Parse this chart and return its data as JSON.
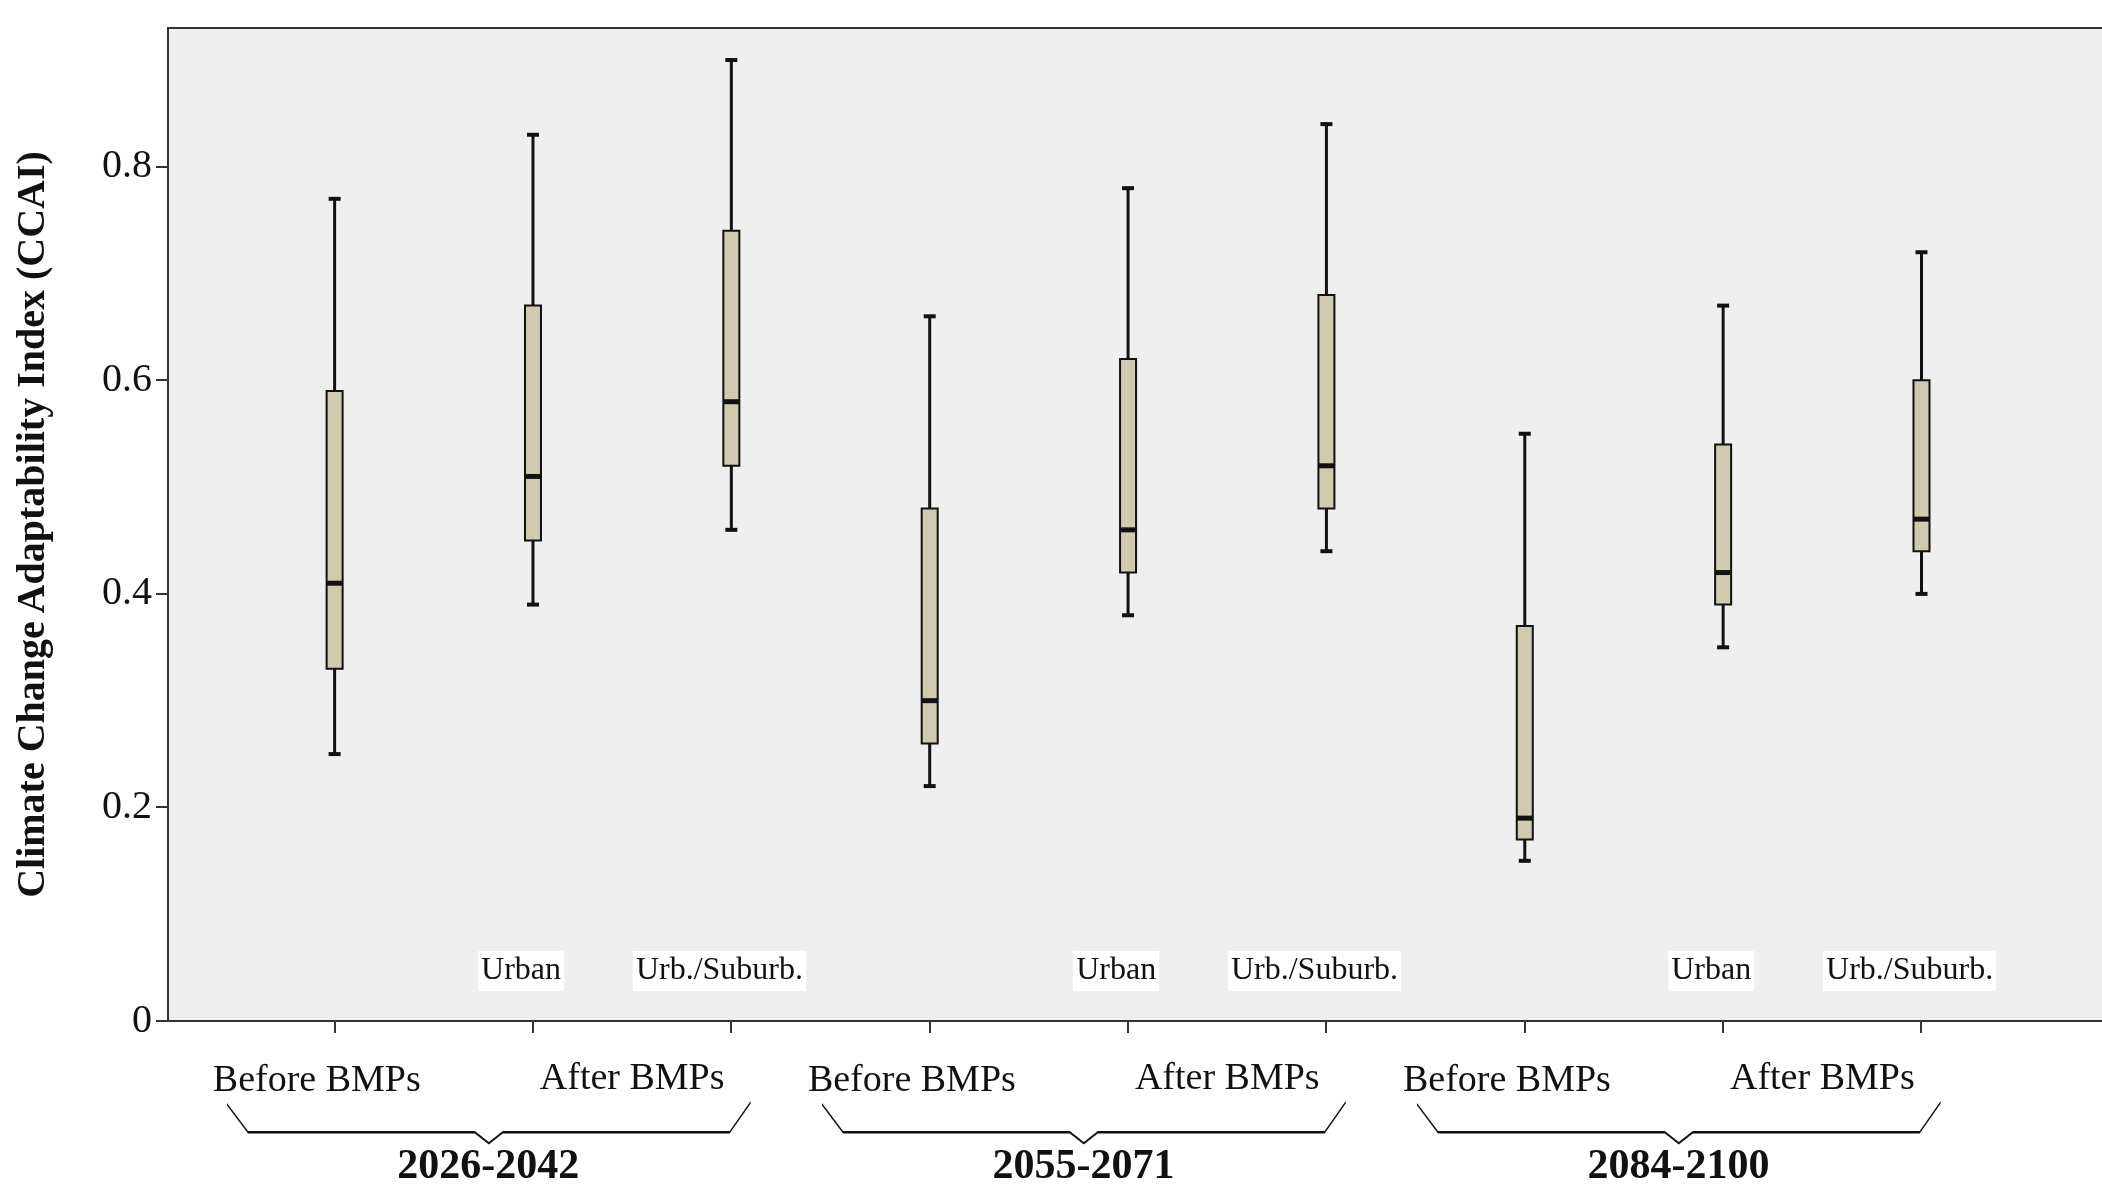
{
  "chart_data": {
    "type": "box",
    "ylabel": "Climate Change Adaptability Index (CCAI)",
    "categories": [
      "Before BMPs",
      "Urban",
      "Urb./Suburb.",
      "Before BMPs",
      "Urban",
      "Urb./Suburb.",
      "Before BMPs",
      "Urban",
      "Urb./Suburb."
    ],
    "boxes": [
      {
        "low": 0.25,
        "q1": 0.33,
        "median": 0.41,
        "q3": 0.59,
        "high": 0.77
      },
      {
        "low": 0.39,
        "q1": 0.45,
        "median": 0.51,
        "q3": 0.67,
        "high": 0.83
      },
      {
        "low": 0.46,
        "q1": 0.52,
        "median": 0.58,
        "q3": 0.74,
        "high": 0.9
      },
      {
        "low": 0.22,
        "q1": 0.26,
        "median": 0.3,
        "q3": 0.48,
        "high": 0.66
      },
      {
        "low": 0.38,
        "q1": 0.42,
        "median": 0.46,
        "q3": 0.62,
        "high": 0.78
      },
      {
        "low": 0.44,
        "q1": 0.48,
        "median": 0.52,
        "q3": 0.68,
        "high": 0.84
      },
      {
        "low": 0.15,
        "q1": 0.17,
        "median": 0.19,
        "q3": 0.37,
        "high": 0.55
      },
      {
        "low": 0.35,
        "q1": 0.39,
        "median": 0.42,
        "q3": 0.54,
        "high": 0.67
      },
      {
        "low": 0.4,
        "q1": 0.44,
        "median": 0.47,
        "q3": 0.6,
        "high": 0.72
      }
    ],
    "color": "#cfcab0",
    "ylim": [
      0,
      0.93
    ],
    "yticks": [
      0,
      0.2,
      0.4,
      0.6,
      0.8
    ],
    "annotations": [
      "After BMPs",
      "2026-2042",
      "After BMPs",
      "2055-2071",
      "After BMPs",
      "2084-2100"
    ]
  }
}
